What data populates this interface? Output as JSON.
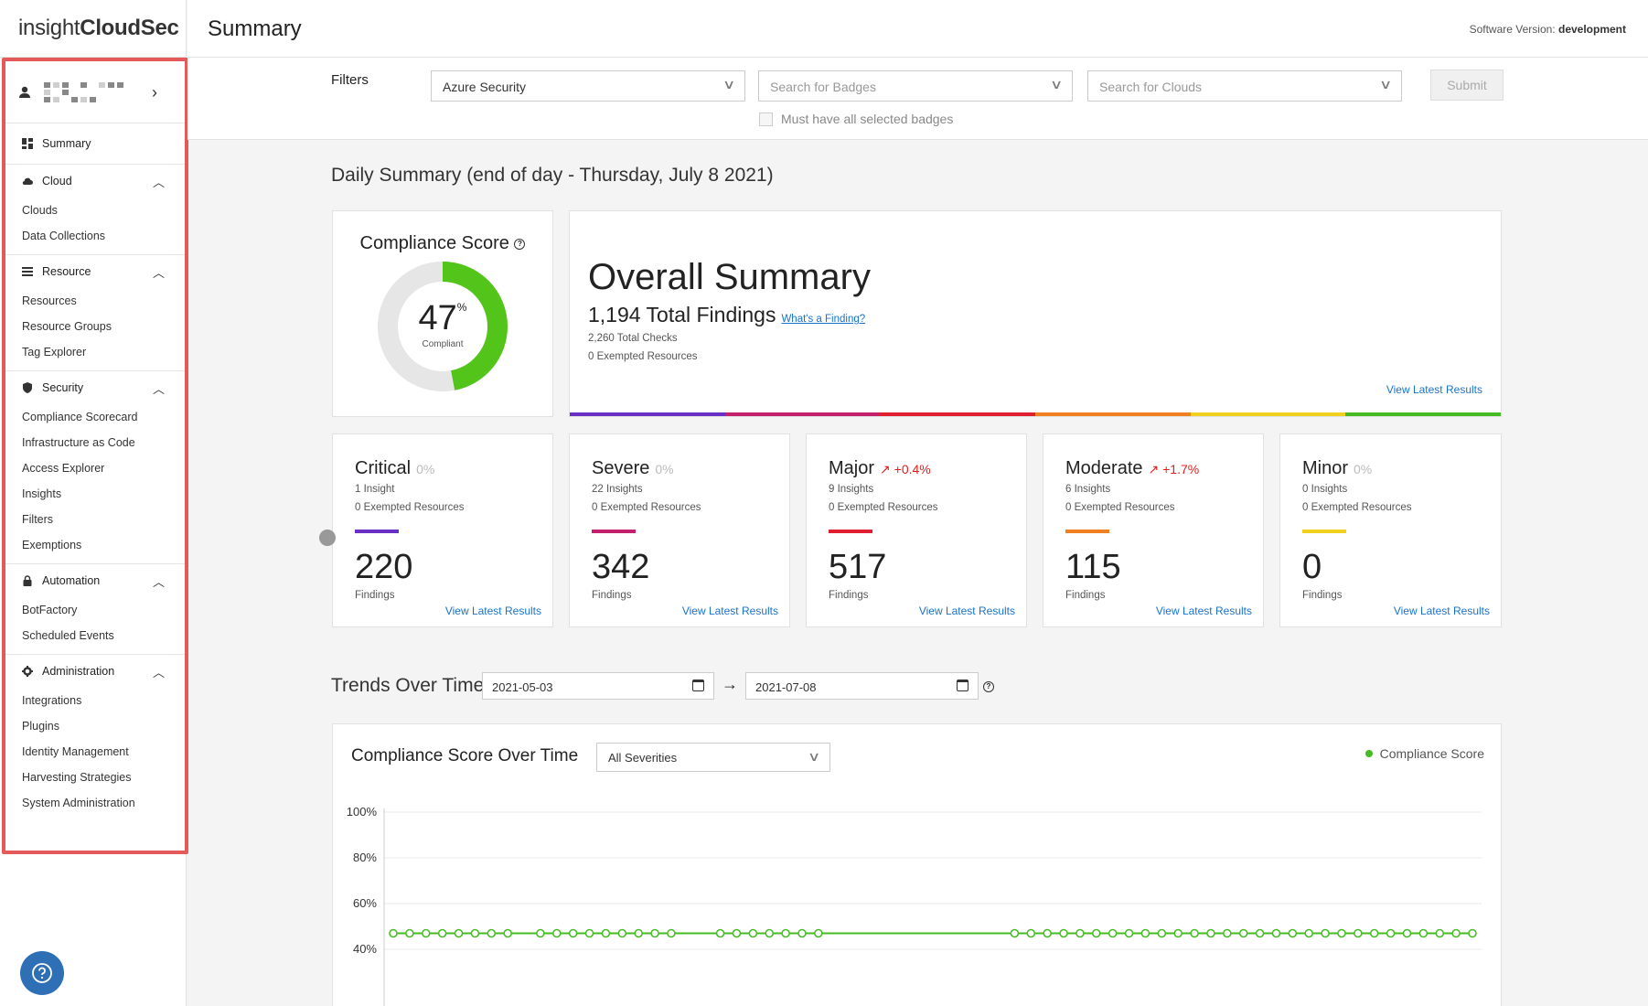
{
  "brand": {
    "logo_light": "insight",
    "logo_bold": "CloudSec"
  },
  "header": {
    "title": "Summary",
    "version_label": "Software Version:",
    "version_value": "development"
  },
  "sidebar": {
    "summary": "Summary",
    "sections": {
      "cloud": {
        "label": "Cloud",
        "items": [
          "Clouds",
          "Data Collections"
        ]
      },
      "resource": {
        "label": "Resource",
        "items": [
          "Resources",
          "Resource Groups",
          "Tag Explorer"
        ]
      },
      "security": {
        "label": "Security",
        "items": [
          "Compliance Scorecard",
          "Infrastructure as Code",
          "Access Explorer",
          "Insights",
          "Filters",
          "Exemptions"
        ]
      },
      "automation": {
        "label": "Automation",
        "items": [
          "BotFactory",
          "Scheduled Events"
        ]
      },
      "administration": {
        "label": "Administration",
        "items": [
          "Integrations",
          "Plugins",
          "Identity Management",
          "Harvesting Strategies",
          "System Administration"
        ]
      }
    }
  },
  "filters": {
    "label": "Filters",
    "pack_value": "Azure Security",
    "badges_placeholder": "Search for Badges",
    "clouds_placeholder": "Search for Clouds",
    "submit": "Submit",
    "must_have_all": "Must have all selected badges"
  },
  "daily": {
    "title": "Daily Summary (end of day - Thursday, July 8 2021)"
  },
  "compliance": {
    "title": "Compliance Score",
    "value": "47",
    "unit": "%",
    "caption": "Compliant",
    "fraction": 0.47,
    "color": "#52c41a",
    "track": "#e6e6e6"
  },
  "overall": {
    "title": "Overall Summary",
    "total": "1,194 Total Findings",
    "link": "What's a Finding?",
    "checks": "2,260 Total Checks",
    "exempted": "0 Exempted Resources",
    "view": "View Latest Results"
  },
  "severities": {
    "critical": {
      "name": "Critical",
      "pct": "0%",
      "insights": "1 Insight",
      "exempted": "0 Exempted Resources",
      "count": "220",
      "findings": "Findings",
      "view": "View Latest Results",
      "color": "#6a2fc4"
    },
    "severe": {
      "name": "Severe",
      "pct": "0%",
      "insights": "22 Insights",
      "exempted": "0 Exempted Resources",
      "count": "342",
      "findings": "Findings",
      "view": "View Latest Results",
      "color": "#c4206e"
    },
    "major": {
      "name": "Major",
      "pct": "+0.4%",
      "insights": "9 Insights",
      "exempted": "0 Exempted Resources",
      "count": "517",
      "findings": "Findings",
      "view": "View Latest Results",
      "color": "#e02030"
    },
    "moderate": {
      "name": "Moderate",
      "pct": "+1.7%",
      "insights": "6 Insights",
      "exempted": "0 Exempted Resources",
      "count": "115",
      "findings": "Findings",
      "view": "View Latest Results",
      "color": "#f08020"
    },
    "minor": {
      "name": "Minor",
      "pct": "0%",
      "insights": "0 Insights",
      "exempted": "0 Exempted Resources",
      "count": "0",
      "findings": "Findings",
      "view": "View Latest Results",
      "color": "#f0d020"
    }
  },
  "strip_colors": [
    "#6a2fc4",
    "#c4206e",
    "#e02030",
    "#f08020",
    "#f0d020",
    "#44bb22"
  ],
  "trends": {
    "title": "Trends Over Time",
    "start": "2021-05-03",
    "end": "2021-07-08"
  },
  "score_chart": {
    "title": "Compliance Score Over Time",
    "severity_filter": "All Severities",
    "legend": "Compliance Score"
  },
  "chart_data": {
    "type": "line",
    "series": [
      {
        "name": "Compliance Score",
        "color": "#44bb22",
        "values": [
          47,
          47,
          47,
          47,
          47,
          47,
          47,
          47,
          null,
          47,
          47,
          47,
          47,
          47,
          47,
          47,
          47,
          47,
          null,
          null,
          47,
          47,
          47,
          47,
          47,
          47,
          47,
          null,
          null,
          null,
          null,
          null,
          null,
          null,
          null,
          null,
          null,
          null,
          47,
          47,
          47,
          47,
          47,
          47,
          47,
          47,
          47,
          47,
          47,
          47,
          47,
          47,
          47,
          47,
          47,
          47,
          47,
          47,
          47,
          47,
          47,
          47,
          47,
          47,
          47,
          47,
          47
        ]
      }
    ],
    "yticks": [
      "100%",
      "80%",
      "60%",
      "40%"
    ],
    "ylim": [
      0,
      100
    ]
  }
}
